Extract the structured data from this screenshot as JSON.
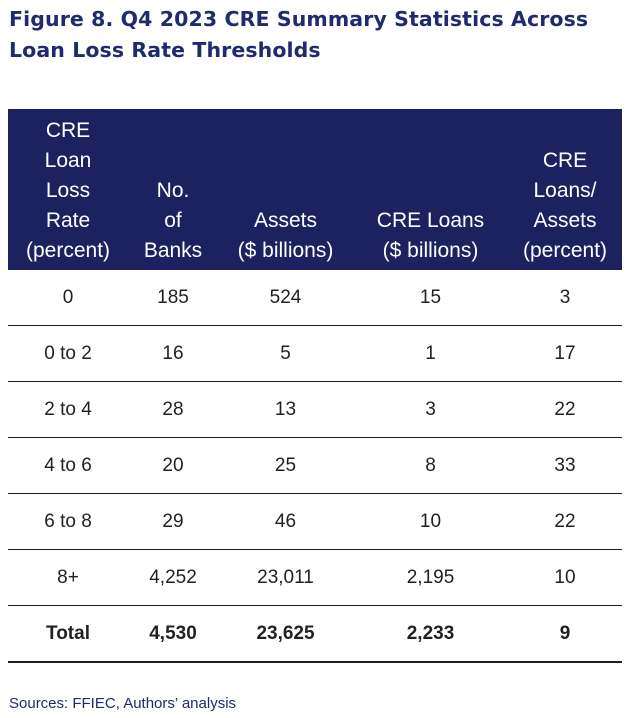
{
  "title": "Figure 8. Q4 2023 CRE Summary Statistics Across Loan Loss Rate Thresholds",
  "chart_data": {
    "type": "table",
    "title": "Figure 8. Q4 2023 CRE Summary Statistics Across Loan Loss Rate Thresholds",
    "columns": [
      "CRE Loan Loss Rate (percent)",
      "No. of Banks",
      "Assets ($ billions)",
      "CRE Loans ($ billions)",
      "CRE Loans/ Assets (percent)"
    ],
    "header_lines": [
      [
        "CRE",
        "Loan",
        "Loss",
        "Rate",
        "(percent)"
      ],
      [
        "No.",
        "of",
        "Banks"
      ],
      [
        "Assets",
        "($ billions)"
      ],
      [
        "CRE Loans",
        "($ billions)"
      ],
      [
        "CRE",
        "Loans/",
        "Assets",
        "(percent)"
      ]
    ],
    "rows": [
      [
        "0",
        "185",
        "524",
        "15",
        "3"
      ],
      [
        "0 to 2",
        "16",
        "5",
        "1",
        "17"
      ],
      [
        "2 to 4",
        "28",
        "13",
        "3",
        "22"
      ],
      [
        "4 to 6",
        "20",
        "25",
        "8",
        "33"
      ],
      [
        "6 to 8",
        "29",
        "46",
        "10",
        "22"
      ],
      [
        "8+",
        "4,252",
        "23,011",
        "2,195",
        "10"
      ]
    ],
    "total": [
      "Total",
      "4,530",
      "23,625",
      "2,233",
      "9"
    ]
  },
  "source": "Sources: FFIEC, Authors’ analysis",
  "colors": {
    "header_bg": "#1c2260",
    "title_text": "#1f2b6e",
    "body_text": "#231f20"
  }
}
